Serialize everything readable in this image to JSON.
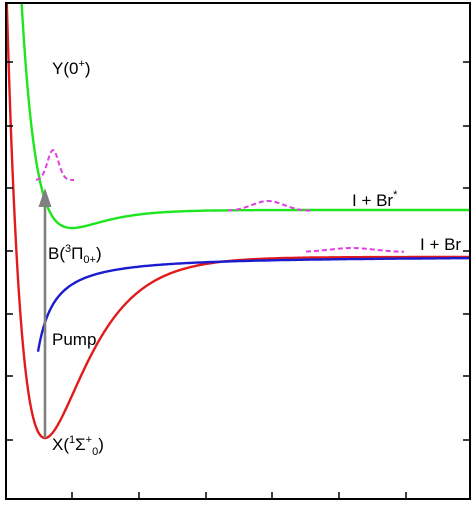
{
  "diagram": {
    "labels": {
      "y_state": {
        "main": "Y(0",
        "sup": "+",
        "close": ")"
      },
      "b_state": {
        "main": "B(",
        "sup": "3",
        "greek": "Π",
        "sub": "0",
        "sub2": "+",
        "close": ")"
      },
      "x_state": {
        "main": "X(",
        "sup": "1",
        "greek": "Σ",
        "sup2": "+",
        "sub": "0",
        "close": ")"
      },
      "asymptote_upper": {
        "main": "I + Br",
        "sup": "*"
      },
      "asymptote_lower": {
        "main": "I + Br"
      },
      "pump": "Pump"
    },
    "colors": {
      "ground_state": "#e11b1b",
      "b_state": "#1ee61e",
      "y_state": "#1b1bd0",
      "wavepacket": "#e040e0",
      "pump_arrow": "#808080",
      "pump_text": "#3a6bd0",
      "frame": "#000000"
    },
    "icons": {
      "pump_arrow": "arrow-up-icon"
    }
  }
}
